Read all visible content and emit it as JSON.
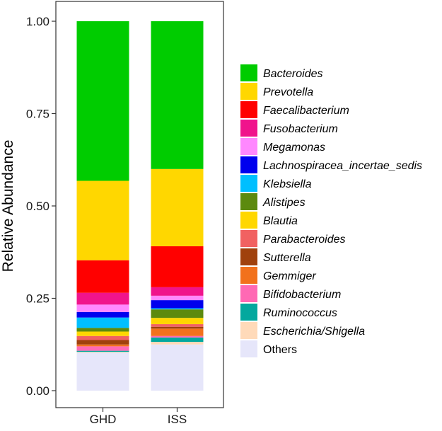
{
  "chart_data": {
    "type": "bar",
    "stacked": true,
    "categories": [
      "GHD",
      "ISS"
    ],
    "ylabel": "Relative Abundance",
    "xlabel": "",
    "ylim": [
      0,
      1.05
    ],
    "yticks": [
      0,
      0.25,
      0.5,
      0.75,
      1
    ],
    "ytick_labels": [
      "0.00",
      "0.25",
      "0.50",
      "0.75",
      "1.00"
    ],
    "legend_position": "right",
    "series": [
      {
        "name": "Others",
        "color": "#E6E6FA",
        "italic": false,
        "values": [
          0.103,
          0.125
        ]
      },
      {
        "name": "Escherichia/Shigella",
        "color": "#FFDAB9",
        "italic": true,
        "values": [
          0.002,
          0.007
        ]
      },
      {
        "name": "Ruminococcus",
        "color": "#03A89E",
        "italic": true,
        "values": [
          0.003,
          0.012
        ]
      },
      {
        "name": "Bifidobacterium",
        "color": "#FF69B4",
        "italic": true,
        "values": [
          0.012,
          0.004
        ]
      },
      {
        "name": "Gemmiger",
        "color": "#F2711C",
        "italic": true,
        "values": [
          0.005,
          0.02
        ]
      },
      {
        "name": "Sutterella",
        "color": "#A0410D",
        "italic": true,
        "values": [
          0.012,
          0.005
        ]
      },
      {
        "name": "Parabacteroides",
        "color": "#F16161",
        "italic": true,
        "values": [
          0.011,
          0.007
        ]
      },
      {
        "name": "Blautia",
        "color": "#FFD700",
        "italic": true,
        "values": [
          0.012,
          0.017
        ]
      },
      {
        "name": "Alistipes",
        "color": "#5C8A0E",
        "italic": true,
        "values": [
          0.01,
          0.023
        ]
      },
      {
        "name": "Klebsiella",
        "color": "#00BFFF",
        "italic": true,
        "values": [
          0.028,
          0.003
        ]
      },
      {
        "name": "Lachnospiracea_incertae_sedis",
        "color": "#0000EE",
        "italic": true,
        "values": [
          0.015,
          0.022
        ]
      },
      {
        "name": "Megamonas",
        "color": "#FF88FF",
        "italic": true,
        "values": [
          0.02,
          0.012
        ]
      },
      {
        "name": "Fusobacterium",
        "color": "#F0148C",
        "italic": true,
        "values": [
          0.032,
          0.023
        ]
      },
      {
        "name": "Faecalibacterium",
        "color": "#FF0000",
        "italic": true,
        "values": [
          0.088,
          0.111
        ]
      },
      {
        "name": "Prevotella",
        "color": "#FFD700",
        "italic": true,
        "values": [
          0.215,
          0.209
        ]
      },
      {
        "name": "Bacteroides",
        "color": "#00CC00",
        "italic": true,
        "values": [
          0.432,
          0.4
        ]
      }
    ]
  }
}
